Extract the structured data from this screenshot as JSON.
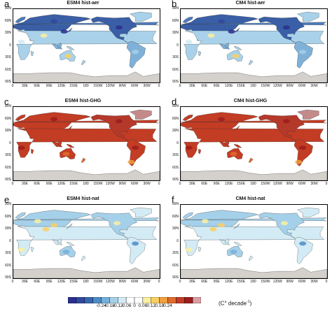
{
  "chart_data": [
    {
      "panel": "a",
      "title": "ESM4 hist-aer",
      "type": "heatmap",
      "scenario": "aer"
    },
    {
      "panel": "b",
      "title": "CM4 hist-aer",
      "type": "heatmap",
      "scenario": "aer"
    },
    {
      "panel": "c",
      "title": "ESM4 hist-GHG",
      "type": "heatmap",
      "scenario": "ghg"
    },
    {
      "panel": "d",
      "title": "CM4 hist-GHG",
      "type": "heatmap",
      "scenario": "ghg"
    },
    {
      "panel": "e",
      "title": "ESM4 hist-nat",
      "type": "heatmap",
      "scenario": "nat"
    },
    {
      "panel": "f",
      "title": "CM4 hist-nat",
      "type": "heatmap",
      "scenario": "nat"
    }
  ],
  "lat_ticks": [
    "90N",
    "60N",
    "30N",
    "0",
    "30S",
    "60S",
    "90S"
  ],
  "lon_ticks": [
    "0",
    "30E",
    "60E",
    "90E",
    "120E",
    "150E",
    "180",
    "150W",
    "120W",
    "90W",
    "60W",
    "30W",
    "0"
  ],
  "colorbar": {
    "labels": [
      "-0.24",
      "-0.18",
      "-0.12",
      "-0.06",
      "0",
      "0.06",
      "0.12",
      "0.18",
      "0.24"
    ],
    "units": "(C° decade",
    "units_sup": "-1",
    "units_end": ")",
    "colors": [
      "#2b2f8f",
      "#31489f",
      "#3568b0",
      "#4c8cc6",
      "#74afd9",
      "#a5d0e9",
      "#d3ebf5",
      "#ffffff",
      "#ffffff",
      "#fbf0a0",
      "#f9d060",
      "#f0a040",
      "#e06c2c",
      "#c33c24",
      "#9e1c1c",
      "#dc9fa4"
    ]
  }
}
